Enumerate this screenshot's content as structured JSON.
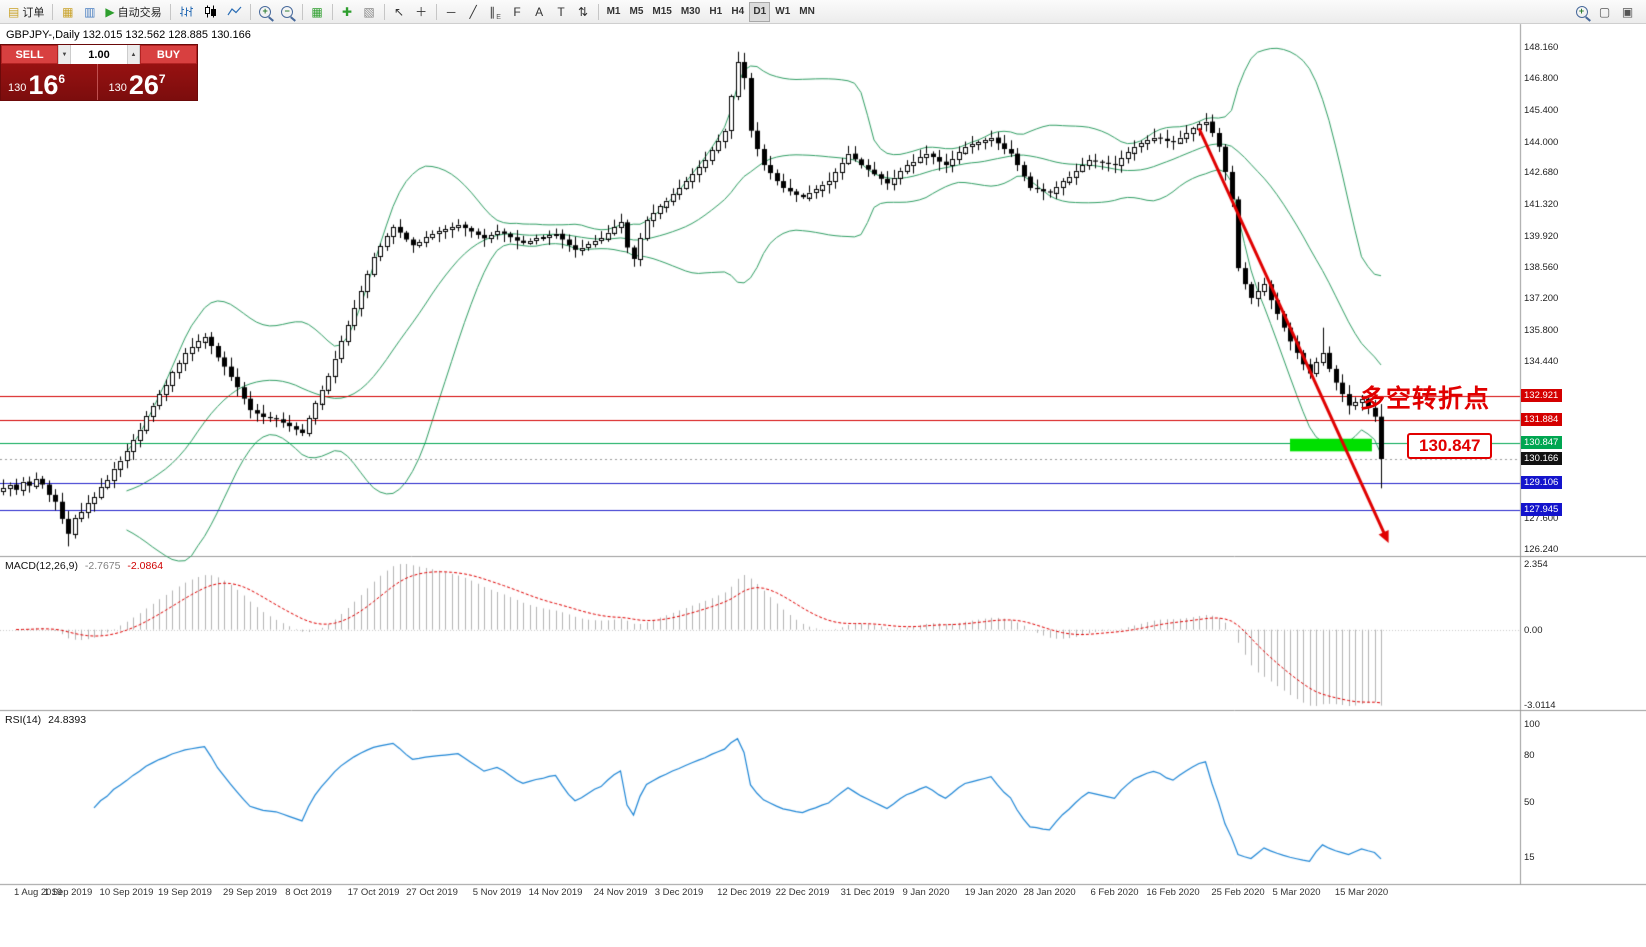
{
  "toolbar": {
    "groups": [
      {
        "items": [
          {
            "name": "new-order-button",
            "label": "订单",
            "glyph": "▤",
            "glyph_color": "#c9a227"
          }
        ]
      },
      {
        "items": [
          {
            "name": "new-chart-icon",
            "glyph": "▦",
            "glyph_color": "#c9a227"
          },
          {
            "name": "profiles-icon",
            "glyph": "▥",
            "glyph_color": "#4a7fc1"
          },
          {
            "name": "autotrade-button",
            "label": "自动交易",
            "glyph": "▶",
            "glyph_color": "#2e9e2e"
          }
        ]
      },
      {
        "items": [
          {
            "name": "bar-chart-icon",
            "svg": "bars"
          },
          {
            "name": "candlestick-chart-icon",
            "svg": "candles"
          },
          {
            "name": "line-chart-icon",
            "svg": "line"
          }
        ]
      },
      {
        "items": [
          {
            "name": "zoom-in-icon",
            "lens": "+"
          },
          {
            "name": "zoom-out-icon",
            "lens": "−"
          }
        ]
      },
      {
        "items": [
          {
            "name": "tile-windows-icon",
            "glyph": "▦",
            "glyph_color": "#2e9e2e"
          }
        ]
      },
      {
        "items": [
          {
            "name": "indicators-icon",
            "glyph": "✚",
            "glyph_color": "#2e9e2e"
          },
          {
            "name": "templates-icon",
            "glyph": "▧",
            "glyph_color": "#888888"
          }
        ]
      },
      {
        "items": [
          {
            "name": "cursor-icon",
            "glyph": "↖",
            "glyph_color": "#333333"
          },
          {
            "name": "crosshair-icon",
            "glyph": "＋",
            "glyph_color": "#333333"
          }
        ]
      },
      {
        "items": [
          {
            "name": "horizontal-line-icon",
            "glyph": "─",
            "glyph_color": "#333333"
          },
          {
            "name": "trendline-icon",
            "glyph": "╱",
            "glyph_color": "#333333"
          },
          {
            "name": "equidistant-channel-icon",
            "glyph": "∥",
            "glyph_color": "#333333",
            "badge": "E"
          },
          {
            "name": "fibonacci-icon",
            "glyph": "F",
            "glyph_color": "#333333"
          },
          {
            "name": "text-icon",
            "glyph": "A",
            "glyph_color": "#333333"
          },
          {
            "name": "text-label-icon",
            "glyph": "T",
            "glyph_color": "#333333"
          },
          {
            "name": "arrows-icon",
            "glyph": "⇅",
            "glyph_color": "#333333"
          }
        ]
      },
      {
        "items": [
          {
            "name": "tf-m1-button",
            "label": "M1",
            "tf": true
          },
          {
            "name": "tf-m5-button",
            "label": "M5",
            "tf": true
          },
          {
            "name": "tf-m15-button",
            "label": "M15",
            "tf": true
          },
          {
            "name": "tf-m30-button",
            "label": "M30",
            "tf": true
          },
          {
            "name": "tf-h1-button",
            "label": "H1",
            "tf": true
          },
          {
            "name": "tf-h4-button",
            "label": "H4",
            "tf": true
          },
          {
            "name": "tf-d1-button",
            "label": "D1",
            "tf": true,
            "active": true
          },
          {
            "name": "tf-w1-button",
            "label": "W1",
            "tf": true
          },
          {
            "name": "tf-mn-button",
            "label": "MN",
            "tf": true
          }
        ]
      }
    ],
    "right_items": [
      {
        "name": "search-icon",
        "lens": "+"
      },
      {
        "name": "new-window-icon",
        "glyph": "▢",
        "glyph_color": "#555555"
      },
      {
        "name": "cascade-windows-icon",
        "glyph": "▣",
        "glyph_color": "#555555"
      }
    ]
  },
  "chart": {
    "symbol_title": "GBPJPY-,Daily  132.015 132.562 128.885 130.166"
  },
  "trade": {
    "sell_label": "SELL",
    "buy_label": "BUY",
    "volume": "1.00",
    "stepper_up": "▲",
    "stepper_down": "▼",
    "sell_small": "130",
    "sell_big": "16",
    "sell_sup": "6",
    "buy_small": "130",
    "buy_big": "26",
    "buy_sup": "7"
  },
  "indicators": {
    "macd": {
      "name": "MACD(12,26,9)",
      "value_main": "-2.7675",
      "value_signal": "-2.0864",
      "scale_labels": [
        "2.354",
        "0.00",
        "-3.0114"
      ]
    },
    "rsi": {
      "name": "RSI(14)",
      "value": "24.8393",
      "scale_labels": [
        "100",
        "80",
        "50",
        "15"
      ]
    }
  },
  "annotations": {
    "turning_point": "多空转折点",
    "price_callout": "130.847"
  },
  "chart_data": {
    "type": "candlestick",
    "symbol": "GBPJPY-",
    "timeframe": "Daily",
    "last_candle_ohlc": [
      132.015,
      132.562,
      128.885,
      130.166
    ],
    "first_open": 128.75,
    "closes": [
      128.9,
      129.05,
      128.82,
      129.18,
      129.0,
      129.3,
      129.05,
      128.6,
      128.3,
      127.55,
      126.9,
      127.6,
      127.85,
      128.25,
      128.5,
      128.95,
      129.25,
      129.75,
      130.1,
      130.5,
      131.0,
      131.45,
      132.05,
      132.5,
      133.0,
      133.4,
      133.95,
      134.35,
      134.8,
      135.05,
      135.3,
      135.5,
      135.1,
      134.6,
      134.2,
      133.75,
      133.3,
      132.8,
      132.3,
      132.15,
      132.0,
      131.95,
      131.9,
      131.75,
      131.6,
      131.45,
      131.3,
      131.95,
      132.6,
      133.2,
      133.8,
      134.55,
      135.3,
      136.0,
      136.75,
      137.5,
      138.25,
      139.0,
      139.45,
      139.9,
      140.3,
      140.05,
      139.75,
      139.5,
      139.65,
      139.85,
      140.0,
      140.1,
      140.2,
      140.3,
      140.4,
      140.25,
      140.1,
      139.95,
      139.8,
      139.95,
      140.1,
      140.0,
      139.85,
      139.7,
      139.6,
      139.7,
      139.8,
      139.85,
      139.95,
      140.0,
      139.75,
      139.5,
      139.3,
      139.4,
      139.55,
      139.7,
      139.8,
      140.05,
      140.3,
      140.5,
      139.4,
      138.9,
      139.8,
      140.6,
      140.9,
      141.2,
      141.45,
      141.75,
      142.0,
      142.3,
      142.6,
      142.9,
      143.2,
      143.65,
      144.05,
      144.5,
      146.0,
      147.5,
      146.8,
      144.5,
      143.7,
      143.0,
      142.65,
      142.3,
      142.0,
      141.85,
      141.7,
      141.6,
      141.8,
      141.95,
      142.15,
      142.3,
      142.7,
      143.1,
      143.5,
      143.25,
      143.0,
      142.8,
      142.6,
      142.4,
      142.2,
      142.45,
      142.75,
      143.0,
      143.15,
      143.35,
      143.5,
      143.35,
      143.15,
      143.0,
      143.25,
      143.55,
      143.8,
      143.9,
      144.0,
      144.1,
      144.2,
      143.95,
      143.7,
      143.5,
      143.0,
      142.5,
      142.0,
      141.95,
      141.85,
      141.8,
      142.05,
      142.3,
      142.5,
      142.75,
      143.0,
      143.2,
      143.15,
      143.1,
      143.05,
      143.0,
      143.3,
      143.55,
      143.8,
      143.95,
      144.1,
      144.2,
      144.15,
      144.05,
      144.0,
      144.2,
      144.4,
      144.6,
      144.8,
      144.9,
      144.4,
      143.8,
      142.7,
      141.5,
      138.5,
      137.8,
      137.2,
      137.5,
      137.8,
      137.1,
      136.5,
      135.9,
      135.3,
      134.8,
      134.3,
      133.9,
      134.4,
      134.8,
      134.1,
      133.5,
      133.0,
      132.5,
      132.65,
      132.8,
      132.4,
      132.015,
      130.166
    ],
    "wick_overrides": {
      "10": [
        null,
        null,
        126.35,
        null
      ],
      "113": [
        null,
        147.95,
        null,
        null
      ],
      "114": [
        null,
        147.9,
        146.3,
        null
      ],
      "115": [
        null,
        null,
        144.2,
        null
      ],
      "203": [
        null,
        135.9,
        null,
        null
      ],
      "212": [
        132.015,
        132.562,
        128.885,
        130.166
      ]
    },
    "bollinger": {
      "period": 20,
      "deviation": 2,
      "color": "#2f9e63"
    },
    "macd_params": [
      12,
      26,
      9
    ],
    "rsi_period": 14,
    "price_axis": {
      "top_price": 149.16,
      "bottom_price": 125.93,
      "ticks": [
        "148.160",
        "146.800",
        "145.400",
        "144.000",
        "142.680",
        "141.320",
        "139.920",
        "138.560",
        "137.200",
        "135.800",
        "134.440",
        "127.600",
        "126.240"
      ]
    },
    "price_labels": [
      {
        "text": "132.921",
        "price": 132.921,
        "bg": "#d40000"
      },
      {
        "text": "131.884",
        "price": 131.884,
        "bg": "#d40000"
      },
      {
        "text": "130.847",
        "price": 130.847,
        "bg": "#00a651"
      },
      {
        "text": "130.166",
        "price": 130.166,
        "bg": "#111111"
      },
      {
        "text": "129.106",
        "price": 129.106,
        "bg": "#1414cc"
      },
      {
        "text": "127.945",
        "price": 127.945,
        "bg": "#1414cc"
      }
    ],
    "hlines": [
      {
        "price": 132.921,
        "color": "#d40000"
      },
      {
        "price": 131.884,
        "color": "#d40000"
      },
      {
        "price": 130.847,
        "color": "#00a651"
      },
      {
        "price": 129.106,
        "color": "#2222cc"
      },
      {
        "price": 127.945,
        "color": "#2222cc"
      }
    ],
    "current_price": 130.166,
    "highlight_box": {
      "from_index": 198,
      "to_index": 210.6,
      "top_price": 131.05,
      "bottom_price": 130.5,
      "color": "#00e000"
    },
    "trend_arrow": {
      "from_index": 184,
      "from_price": 144.6,
      "to_index": 212.6,
      "to_price": 126.85,
      "color": "#e00000",
      "width": 3
    },
    "date_labels": [
      {
        "label": "1 Aug 2019",
        "index": 2
      },
      {
        "label": "1 Sep 2019",
        "index": 10
      },
      {
        "label": "10 Sep 2019",
        "index": 19
      },
      {
        "label": "19 Sep 2019",
        "index": 28
      },
      {
        "label": "29 Sep 2019",
        "index": 38
      },
      {
        "label": "8 Oct 2019",
        "index": 47
      },
      {
        "label": "17 Oct 2019",
        "index": 57
      },
      {
        "label": "27 Oct 2019",
        "index": 66
      },
      {
        "label": "5 Nov 2019",
        "index": 76
      },
      {
        "label": "14 Nov 2019",
        "index": 85
      },
      {
        "label": "24 Nov 2019",
        "index": 95
      },
      {
        "label": "3 Dec 2019",
        "index": 104
      },
      {
        "label": "12 Dec 2019",
        "index": 114
      },
      {
        "label": "22 Dec 2019",
        "index": 123
      },
      {
        "label": "31 Dec 2019",
        "index": 133
      },
      {
        "label": "9 Jan 2020",
        "index": 142
      },
      {
        "label": "19 Jan 2020",
        "index": 152
      },
      {
        "label": "28 Jan 2020",
        "index": 161
      },
      {
        "label": "6 Feb 2020",
        "index": 171
      },
      {
        "label": "16 Feb 2020",
        "index": 180
      },
      {
        "label": "25 Feb 2020",
        "index": 190
      },
      {
        "label": "5 Mar 2020",
        "index": 199
      },
      {
        "label": "15 Mar 2020",
        "index": 209
      }
    ],
    "colors": {
      "up": "#ffffff",
      "down": "#000000",
      "outline": "#000000",
      "macd_hist": "#b4b4b4",
      "macd_signal": "#e00000",
      "rsi_line": "#1e86d6"
    }
  }
}
